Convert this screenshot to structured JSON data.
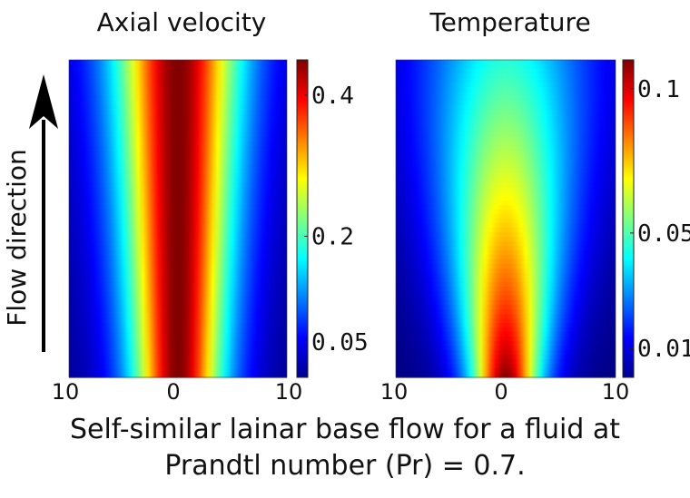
{
  "chart_data": [
    {
      "type": "heatmap",
      "title": "Axial velocity",
      "x_tick_labels": [
        "10",
        "0",
        "10"
      ],
      "xlim": [
        -10,
        10
      ],
      "colorbar": {
        "range": [
          0.0,
          0.45
        ],
        "tick_values": [
          0.4,
          0.2,
          0.05
        ],
        "tick_labels": [
          "0.4",
          "0.2",
          "0.05"
        ]
      },
      "field": {
        "peak_value": 0.45,
        "center_x": 0,
        "core_half_width_bottom": 4.0,
        "core_half_width_top": 5.5,
        "rows_uniform": false
      }
    },
    {
      "type": "heatmap",
      "title": "Temperature",
      "x_tick_labels": [
        "10",
        "0",
        "10"
      ],
      "xlim": [
        -10,
        10
      ],
      "colorbar": {
        "range": [
          0.0,
          0.11
        ],
        "tick_values": [
          0.1,
          0.05,
          0.01
        ],
        "tick_labels": [
          "0.1",
          "0.05",
          "0.01"
        ]
      },
      "field": {
        "peak_value_bottom": 0.11,
        "peak_value_top": 0.045,
        "center_x": 0,
        "core_half_width_bottom": 3.0,
        "core_half_width_top": 7.5
      }
    }
  ],
  "annotation": {
    "flow_label": "Flow direction"
  },
  "caption": {
    "line1": "Self-similar lainar base flow for a fluid at",
    "line2": "Prandtl number (Pr) = 0.7."
  },
  "colormap": "jet"
}
